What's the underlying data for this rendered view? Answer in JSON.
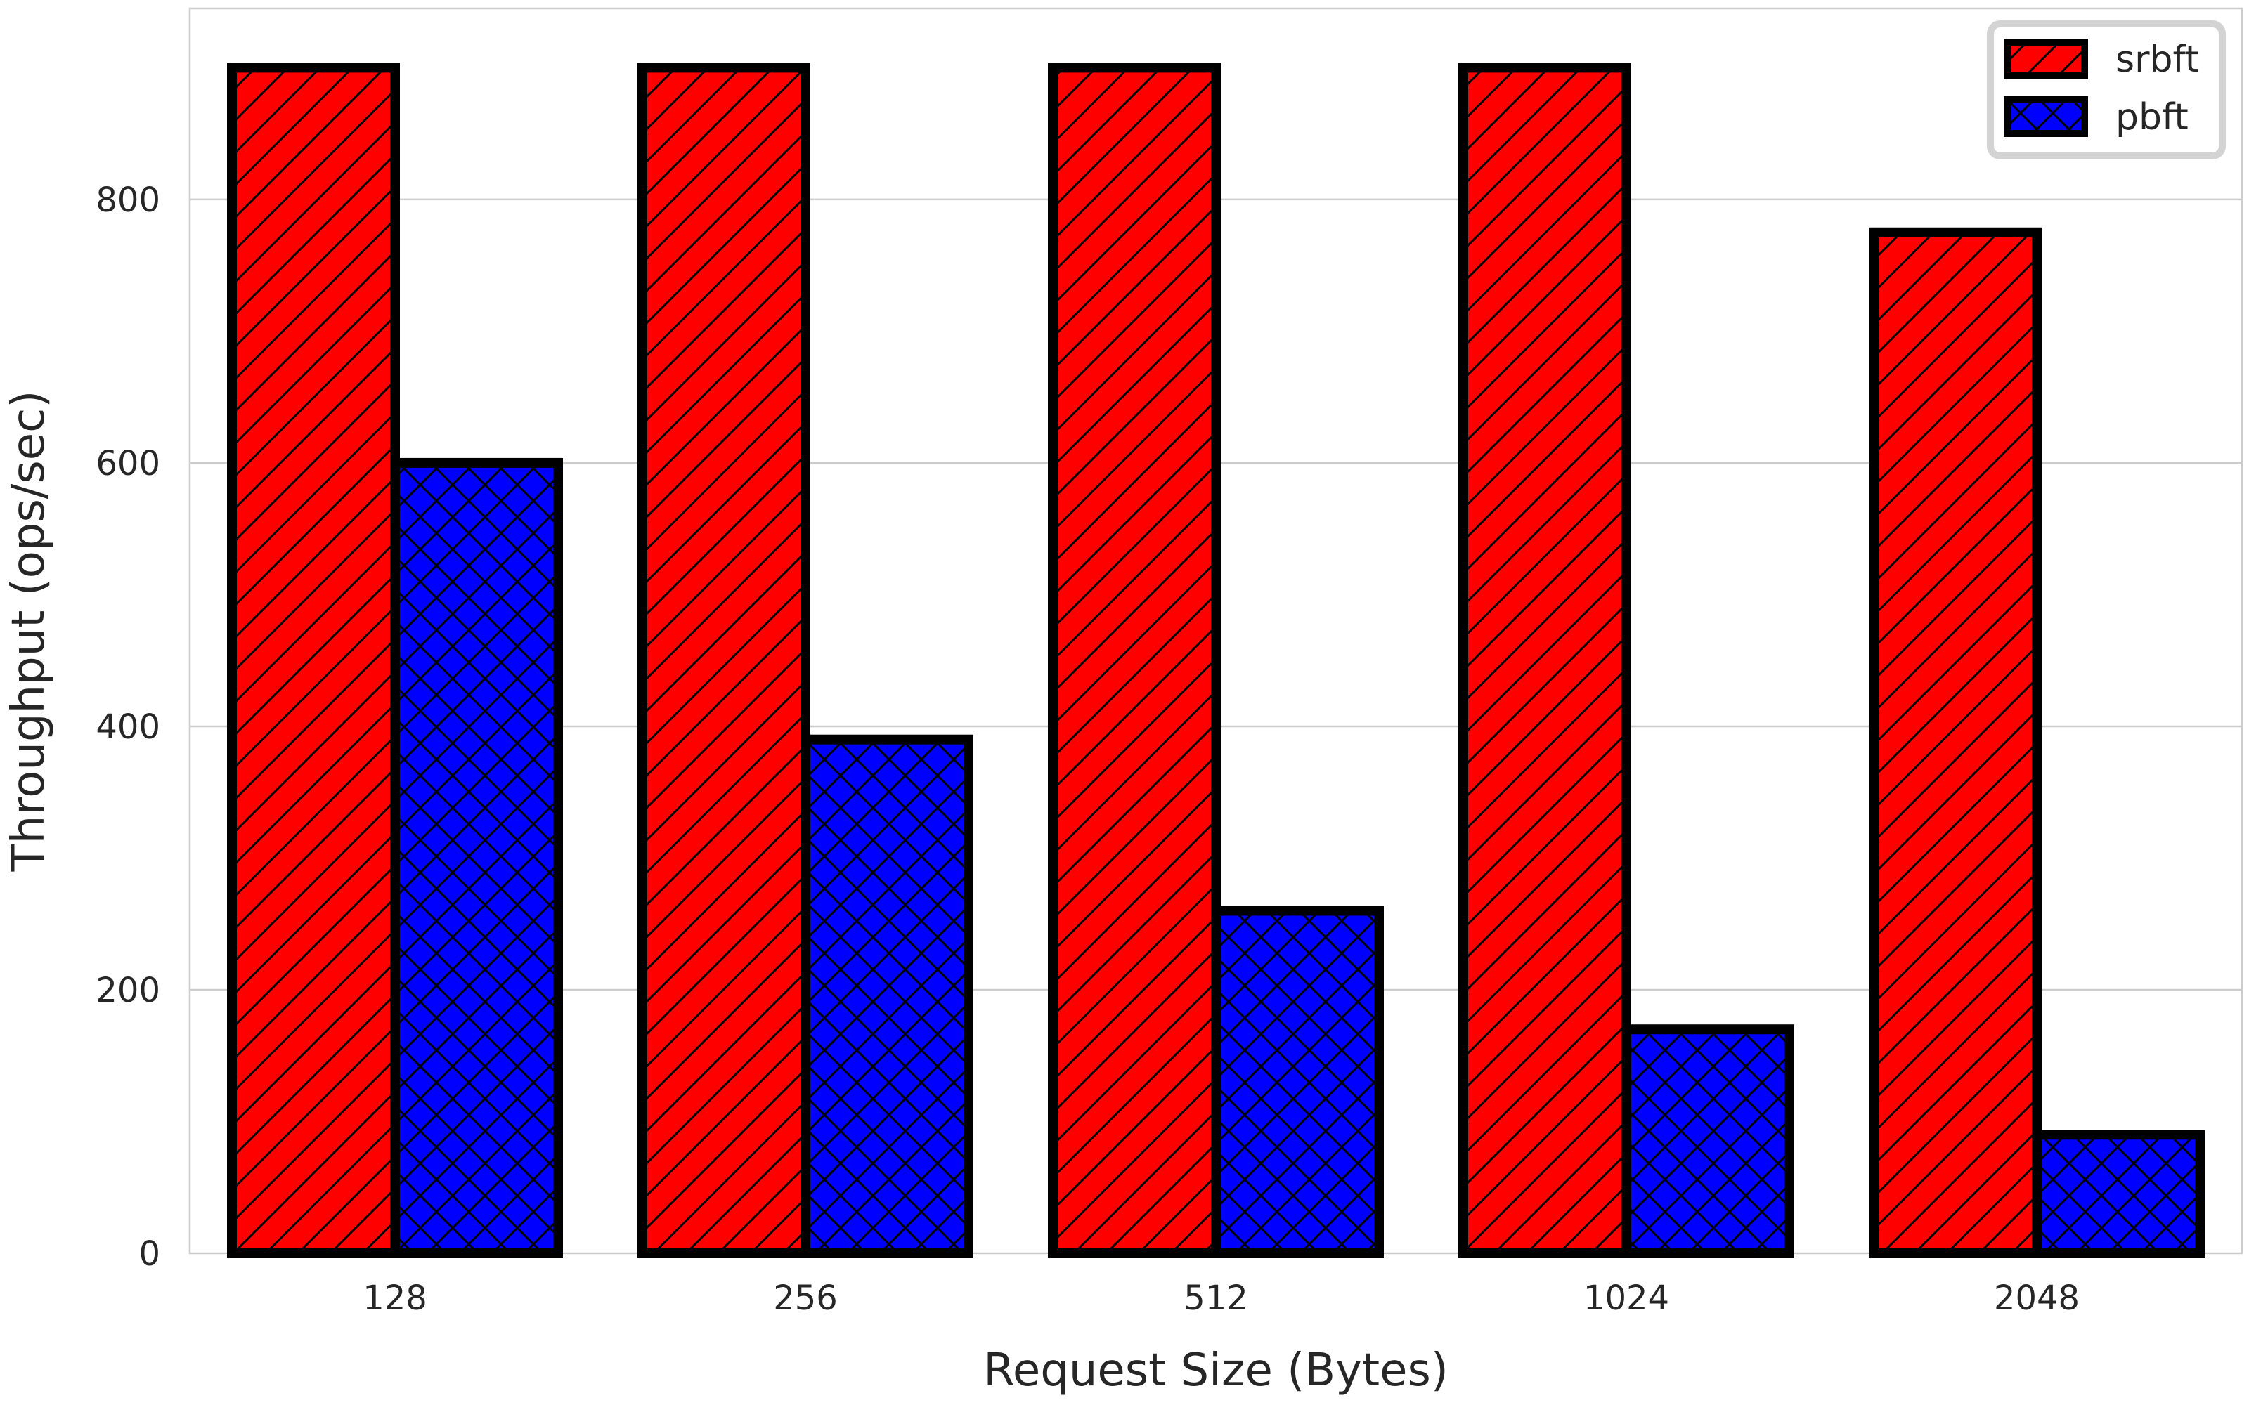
{
  "chart_data": {
    "type": "bar",
    "title": "",
    "xlabel": "Request Size (Bytes)",
    "ylabel": "Throughput (ops/sec)",
    "categories": [
      "128",
      "256",
      "512",
      "1024",
      "2048"
    ],
    "ylim": [
      0,
      945
    ],
    "yticks": [
      0,
      200,
      400,
      600,
      800
    ],
    "grid": true,
    "legend_position": "top-right",
    "series": [
      {
        "name": "srbft",
        "values": [
          900,
          900,
          900,
          900,
          775
        ],
        "color": "#ff0000",
        "hatch": "diagonal"
      },
      {
        "name": "pbft",
        "values": [
          600,
          390,
          260,
          170,
          90
        ],
        "color": "#0000ff",
        "hatch": "crosshatch"
      }
    ]
  }
}
